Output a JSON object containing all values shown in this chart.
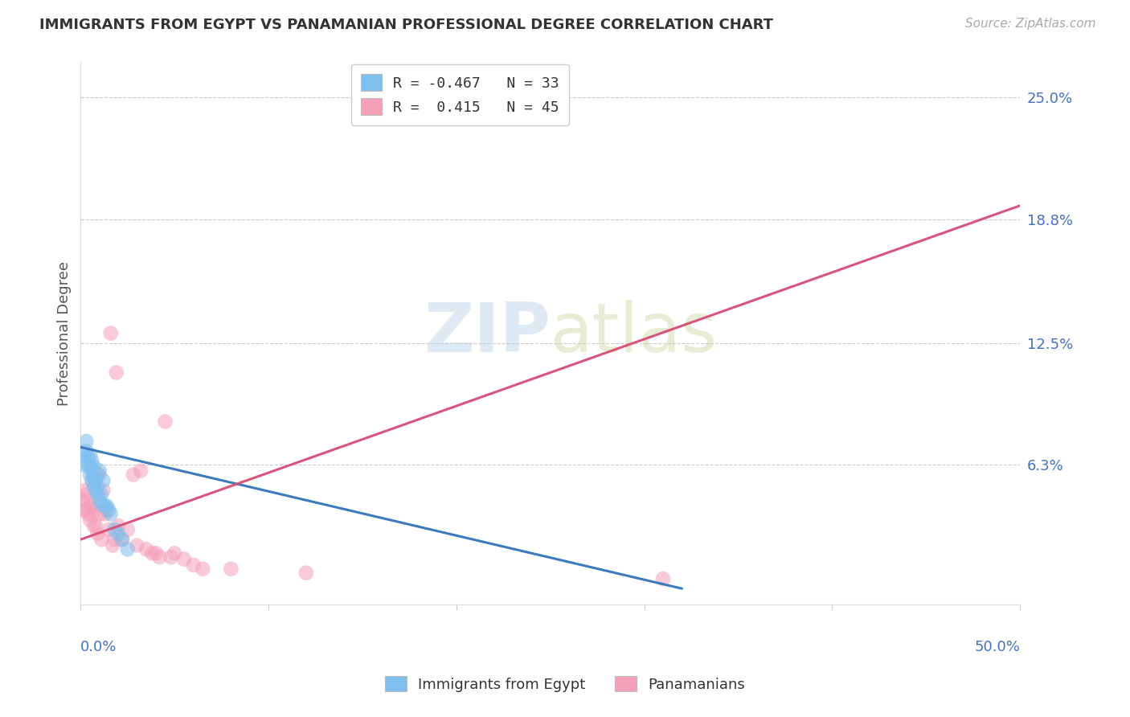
{
  "title": "IMMIGRANTS FROM EGYPT VS PANAMANIAN PROFESSIONAL DEGREE CORRELATION CHART",
  "source": "Source: ZipAtlas.com",
  "ylabel": "Professional Degree",
  "ytick_labels": [
    "25.0%",
    "18.8%",
    "12.5%",
    "6.3%"
  ],
  "ytick_positions": [
    0.25,
    0.188,
    0.125,
    0.063
  ],
  "xlim": [
    0.0,
    0.5
  ],
  "ylim": [
    -0.008,
    0.268
  ],
  "blue_color": "#7fbfee",
  "pink_color": "#f5a0b8",
  "blue_line_color": "#3a7abf",
  "pink_line_color": "#d9547a",
  "watermark_zip": "ZIP",
  "watermark_atlas": "atlas",
  "blue_scatter_x": [
    0.001,
    0.002,
    0.003,
    0.003,
    0.004,
    0.004,
    0.005,
    0.005,
    0.005,
    0.006,
    0.006,
    0.006,
    0.007,
    0.007,
    0.007,
    0.008,
    0.008,
    0.009,
    0.009,
    0.009,
    0.01,
    0.01,
    0.011,
    0.011,
    0.012,
    0.013,
    0.014,
    0.015,
    0.016,
    0.018,
    0.02,
    0.022,
    0.025
  ],
  "blue_scatter_y": [
    0.063,
    0.068,
    0.07,
    0.075,
    0.063,
    0.067,
    0.058,
    0.062,
    0.068,
    0.055,
    0.06,
    0.065,
    0.052,
    0.057,
    0.062,
    0.05,
    0.055,
    0.048,
    0.052,
    0.058,
    0.045,
    0.06,
    0.043,
    0.048,
    0.055,
    0.042,
    0.042,
    0.04,
    0.038,
    0.03,
    0.028,
    0.025,
    0.02
  ],
  "pink_scatter_x": [
    0.001,
    0.002,
    0.002,
    0.003,
    0.003,
    0.004,
    0.004,
    0.005,
    0.005,
    0.006,
    0.006,
    0.007,
    0.007,
    0.008,
    0.009,
    0.01,
    0.01,
    0.011,
    0.012,
    0.013,
    0.014,
    0.015,
    0.016,
    0.017,
    0.018,
    0.019,
    0.02,
    0.022,
    0.025,
    0.028,
    0.03,
    0.032,
    0.035,
    0.038,
    0.04,
    0.042,
    0.045,
    0.048,
    0.05,
    0.055,
    0.06,
    0.065,
    0.08,
    0.12,
    0.31
  ],
  "pink_scatter_y": [
    0.045,
    0.04,
    0.05,
    0.04,
    0.048,
    0.038,
    0.045,
    0.035,
    0.042,
    0.038,
    0.055,
    0.032,
    0.042,
    0.032,
    0.028,
    0.058,
    0.038,
    0.025,
    0.05,
    0.038,
    0.04,
    0.03,
    0.13,
    0.022,
    0.025,
    0.11,
    0.032,
    0.025,
    0.03,
    0.058,
    0.022,
    0.06,
    0.02,
    0.018,
    0.018,
    0.016,
    0.085,
    0.016,
    0.018,
    0.015,
    0.012,
    0.01,
    0.01,
    0.008,
    0.005
  ],
  "blue_trendline_x": [
    0.0,
    0.32
  ],
  "blue_trendline_y": [
    0.072,
    0.0
  ],
  "pink_trendline_x": [
    0.0,
    0.5
  ],
  "pink_trendline_y": [
    0.025,
    0.195
  ],
  "legend_line1": "R = -0.467   N = 33",
  "legend_line2": "R =  0.415   N = 45",
  "legend_label1": "Immigrants from Egypt",
  "legend_label2": "Panamanians"
}
